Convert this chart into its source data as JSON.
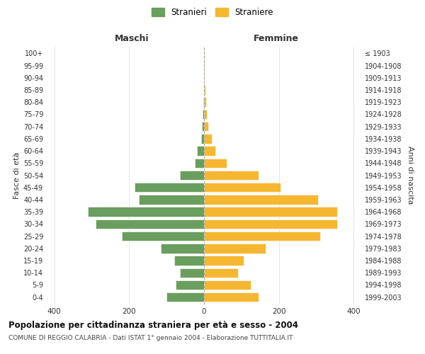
{
  "age_groups": [
    "0-4",
    "5-9",
    "10-14",
    "15-19",
    "20-24",
    "25-29",
    "30-34",
    "35-39",
    "40-44",
    "45-49",
    "50-54",
    "55-59",
    "60-64",
    "65-69",
    "70-74",
    "75-79",
    "80-84",
    "85-89",
    "90-94",
    "95-99",
    "100+"
  ],
  "birth_years": [
    "1999-2003",
    "1994-1998",
    "1989-1993",
    "1984-1988",
    "1979-1983",
    "1974-1978",
    "1969-1973",
    "1964-1968",
    "1959-1963",
    "1954-1958",
    "1949-1953",
    "1944-1948",
    "1939-1943",
    "1934-1938",
    "1929-1933",
    "1924-1928",
    "1919-1923",
    "1914-1918",
    "1909-1913",
    "1904-1908",
    "≤ 1903"
  ],
  "maschi": [
    100,
    75,
    65,
    80,
    115,
    220,
    290,
    310,
    175,
    185,
    65,
    25,
    18,
    8,
    5,
    3,
    2,
    0,
    0,
    0,
    0
  ],
  "femmine": [
    145,
    125,
    90,
    105,
    165,
    310,
    355,
    355,
    305,
    205,
    145,
    60,
    30,
    20,
    12,
    7,
    5,
    3,
    2,
    1,
    1
  ],
  "color_maschi": "#6a9e5e",
  "color_femmine": "#f5b731",
  "xlim": 420,
  "title": "Popolazione per cittadinanza straniera per età e sesso - 2004",
  "subtitle": "COMUNE DI REGGIO CALABRIA - Dati ISTAT 1° gennaio 2004 - Elaborazione TUTTITALIA.IT",
  "ylabel_left": "Fasce di età",
  "ylabel_right": "Anni di nascita",
  "label_maschi": "Stranieri",
  "label_femmine": "Straniere",
  "header_maschi": "Maschi",
  "header_femmine": "Femmine",
  "bg_color": "#ffffff",
  "grid_color": "#cccccc"
}
